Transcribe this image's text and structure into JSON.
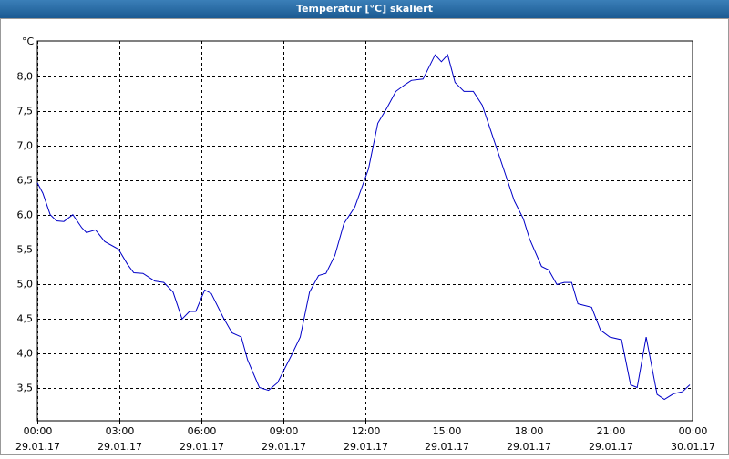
{
  "window": {
    "title": "Temperatur [°C] skaliert"
  },
  "chart_data": {
    "type": "line",
    "y_unit": "°C",
    "color": "#0000c8",
    "grid": true,
    "xlim": [
      0,
      24
    ],
    "ylim": [
      3.03,
      8.52
    ],
    "xticks": [
      {
        "value": 0,
        "label": "00:00",
        "date": "29.01.17"
      },
      {
        "value": 3,
        "label": "03:00",
        "date": "29.01.17"
      },
      {
        "value": 6,
        "label": "06:00",
        "date": "29.01.17"
      },
      {
        "value": 9,
        "label": "09:00",
        "date": "29.01.17"
      },
      {
        "value": 12,
        "label": "12:00",
        "date": "29.01.17"
      },
      {
        "value": 15,
        "label": "15:00",
        "date": "29.01.17"
      },
      {
        "value": 18,
        "label": "18:00",
        "date": "29.01.17"
      },
      {
        "value": 21,
        "label": "21:00",
        "date": "29.01.17"
      },
      {
        "value": 24,
        "label": "00:00",
        "date": "30.01.17"
      }
    ],
    "yticks": [
      {
        "value": 3.5,
        "label": "3,5"
      },
      {
        "value": 4,
        "label": "4,0"
      },
      {
        "value": 4.5,
        "label": "4,5"
      },
      {
        "value": 5,
        "label": "5,0"
      },
      {
        "value": 5.5,
        "label": "5,5"
      },
      {
        "value": 6,
        "label": "6,0"
      },
      {
        "value": 6.5,
        "label": "6,5"
      },
      {
        "value": 7,
        "label": "7,0"
      },
      {
        "value": 7.5,
        "label": "7,5"
      },
      {
        "value": 8,
        "label": "8,0"
      }
    ],
    "x": [
      0,
      0.2,
      0.47,
      0.7,
      0.97,
      1.3,
      1.63,
      1.8,
      2.13,
      2.47,
      2.97,
      3.3,
      3.53,
      3.87,
      4.3,
      4.63,
      4.97,
      5.3,
      5.57,
      5.8,
      6.13,
      6.37,
      6.8,
      7.13,
      7.47,
      7.7,
      8.13,
      8.47,
      8.8,
      9.3,
      9.63,
      9.97,
      10.3,
      10.57,
      10.9,
      11.23,
      11.63,
      12.13,
      12.47,
      12.8,
      13.13,
      13.47,
      13.7,
      14.13,
      14.57,
      14.8,
      15.03,
      15.3,
      15.63,
      15.97,
      16.3,
      16.63,
      17.13,
      17.47,
      17.8,
      18.03,
      18.47,
      18.73,
      19.03,
      19.3,
      19.57,
      19.8,
      20.3,
      20.63,
      20.97,
      21.4,
      21.73,
      21.97,
      22.3,
      22.7,
      22.97,
      23.3,
      23.63,
      23.9
    ],
    "values": [
      6.47,
      6.32,
      6.01,
      5.92,
      5.91,
      6.01,
      5.82,
      5.75,
      5.79,
      5.62,
      5.51,
      5.29,
      5.17,
      5.16,
      5.05,
      5.03,
      4.89,
      4.5,
      4.61,
      4.61,
      4.92,
      4.87,
      4.53,
      4.3,
      4.24,
      3.91,
      3.51,
      3.47,
      3.58,
      3.97,
      4.24,
      4.89,
      5.13,
      5.16,
      5.42,
      5.88,
      6.12,
      6.67,
      7.33,
      7.55,
      7.79,
      7.89,
      7.95,
      7.97,
      8.32,
      8.22,
      8.32,
      7.92,
      7.79,
      7.79,
      7.59,
      7.2,
      6.61,
      6.21,
      5.95,
      5.66,
      5.26,
      5.21,
      5.0,
      5.03,
      5.03,
      4.72,
      4.67,
      4.34,
      4.24,
      4.2,
      3.55,
      3.51,
      4.24,
      3.41,
      3.34,
      3.42,
      3.45,
      3.55
    ]
  }
}
